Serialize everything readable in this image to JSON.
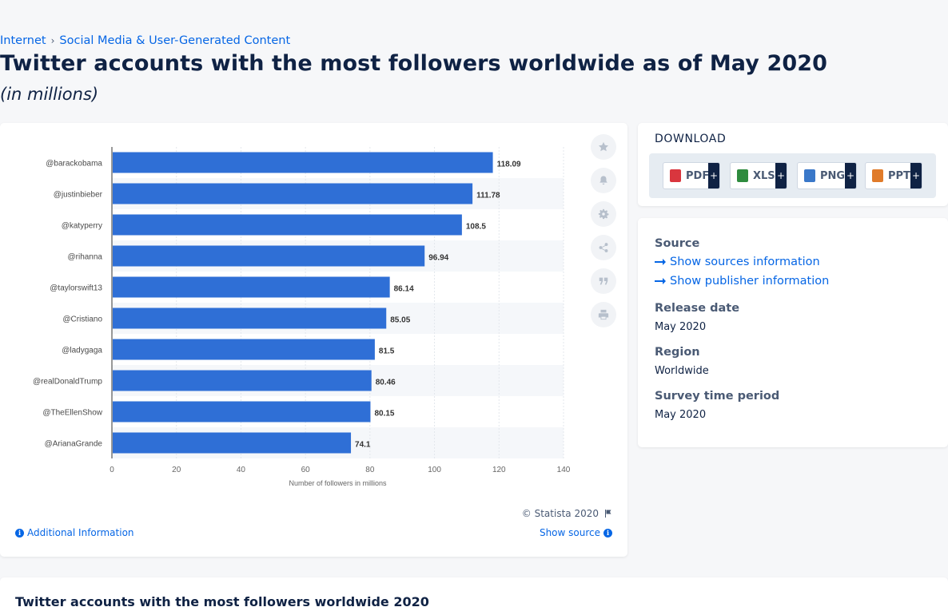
{
  "breadcrumb": {
    "items": [
      "Internet",
      "Social Media & User-Generated Content"
    ],
    "separator": "›"
  },
  "page": {
    "title": "Twitter accounts with the most followers worldwide as of May 2020",
    "subtitle": "(in millions)"
  },
  "chart_data": {
    "type": "bar",
    "orientation": "horizontal",
    "categories": [
      "@barackobama",
      "@justinbieber",
      "@katyperry",
      "@rihanna",
      "@taylorswift13",
      "@Cristiano",
      "@ladygaga",
      "@realDonaldTrump",
      "@TheEllenShow",
      "@ArianaGrande"
    ],
    "values": [
      118.09,
      111.78,
      108.5,
      96.94,
      86.14,
      85.05,
      81.5,
      80.46,
      80.15,
      74.1
    ],
    "value_labels": [
      "118.09",
      "111.78",
      "108.5",
      "96.94",
      "86.14",
      "85.05",
      "81.5",
      "80.46",
      "80.15",
      "74.1"
    ],
    "xlabel": "Number of followers in millions",
    "xlim": [
      0,
      140
    ],
    "xticks": [
      0,
      20,
      40,
      60,
      80,
      100,
      120,
      140
    ],
    "bar_color": "#2f6fd6",
    "stripe_color": "#f5f7fa",
    "grid": true
  },
  "tools": [
    "star-icon",
    "bell-icon",
    "gear-icon",
    "share-icon",
    "quote-icon",
    "print-icon"
  ],
  "chart_footer": {
    "copyright": "© Statista 2020",
    "additional_info": "Additional Information",
    "show_source": "Show source"
  },
  "download": {
    "title": "DOWNLOAD",
    "formats": [
      {
        "label": "PDF",
        "plus": "+",
        "color": "#d9363e"
      },
      {
        "label": "XLS",
        "plus": "+",
        "color": "#2e8b3e"
      },
      {
        "label": "PNG",
        "plus": "+",
        "color": "#3a78c9"
      },
      {
        "label": "PPT",
        "plus": "+",
        "color": "#e07b2a"
      }
    ]
  },
  "meta": {
    "source_heading": "Source",
    "show_sources": "Show sources information",
    "show_publisher": "Show publisher information",
    "release_heading": "Release date",
    "release_value": "May 2020",
    "region_heading": "Region",
    "region_value": "Worldwide",
    "survey_heading": "Survey time period",
    "survey_value": "May 2020"
  },
  "bottom": {
    "title": "Twitter accounts with the most followers worldwide 2020"
  }
}
